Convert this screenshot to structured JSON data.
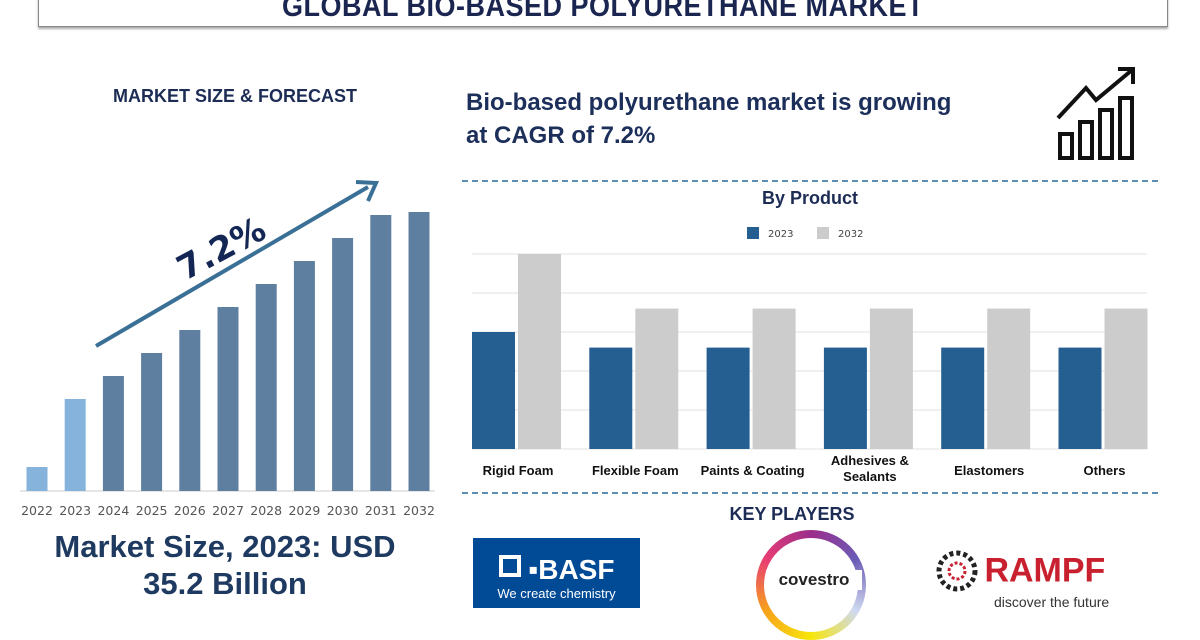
{
  "title": "GLOBAL BIO-BASED POLYURETHANE MARKET",
  "left": {
    "heading": "MARKET SIZE & FORECAST",
    "cagr_label": "7.2%",
    "market_size_line1": "Market Size, 2023: USD",
    "market_size_line2": "35.2 Billion"
  },
  "right": {
    "headline_line1": "Bio-based polyurethane market is growing",
    "headline_line2": "at CAGR of 7.2%",
    "icon": "growth-chart-arrow-icon",
    "key_players_heading": "KEY PLAYERS",
    "key_players": [
      {
        "name": "BASF",
        "tagline": "We create chemistry",
        "color": "#004a96"
      },
      {
        "name": "covestro"
      },
      {
        "name": "RAMPF",
        "tagline": "discover the future",
        "color": "#c8202f"
      }
    ]
  },
  "colors": {
    "navy": "#1c2c55",
    "series_2023": "#255e91",
    "series_2032": "#cccccc",
    "forecast_bar": "#5f7fa0",
    "history_bar": "#86b3dc",
    "arrow": "#3a6f96"
  },
  "chart_data": [
    {
      "type": "bar",
      "title": "",
      "categories": [
        "2022",
        "2023",
        "2024",
        "2025",
        "2026",
        "2027",
        "2028",
        "2029",
        "2030",
        "2031",
        "2032"
      ],
      "values": [
        24,
        92,
        115,
        138,
        161,
        184,
        207,
        230,
        253,
        276,
        279
      ],
      "value_scale": "relative (no axis printed)",
      "highlighted_categories": [
        "2022",
        "2023"
      ],
      "annotation": "7.2%",
      "grid": false
    },
    {
      "type": "bar",
      "title": "By Product",
      "categories": [
        "Rigid Foam",
        "Flexible Foam",
        "Paints & Coating",
        "Adhesives & Sealants",
        "Elastomers",
        "Others"
      ],
      "category_lines": [
        [
          "Rigid Foam"
        ],
        [
          "Flexible Foam"
        ],
        [
          "Paints & Coating"
        ],
        [
          "Adhesives &",
          "Sealants"
        ],
        [
          "Elastomers"
        ],
        [
          "Others"
        ]
      ],
      "series": [
        {
          "name": "2023",
          "values": [
            3.0,
            2.6,
            2.6,
            2.6,
            2.6,
            2.6
          ]
        },
        {
          "name": "2032",
          "values": [
            5.0,
            3.6,
            3.6,
            3.6,
            3.6,
            3.6
          ]
        }
      ],
      "ylim": [
        0,
        5
      ],
      "grid": true,
      "legend": "top-center"
    }
  ]
}
